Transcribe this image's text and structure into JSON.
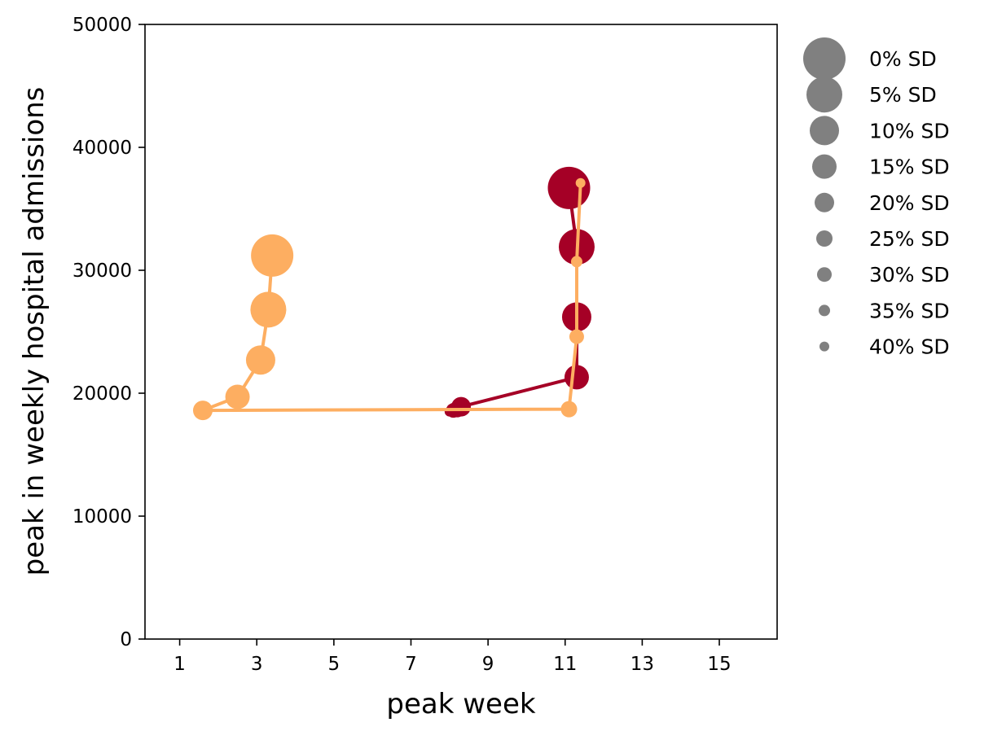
{
  "chart_data": {
    "type": "scatter",
    "title": "",
    "xlabel": "peak week",
    "ylabel": "peak in weekly hospital admissions",
    "xlim": [
      0.1,
      16.5
    ],
    "ylim": [
      0,
      50000
    ],
    "x_ticks": [
      1,
      3,
      5,
      7,
      9,
      11,
      13,
      15
    ],
    "y_ticks": [
      0,
      10000,
      20000,
      30000,
      40000,
      50000
    ],
    "x_tick_labels": [
      "1",
      "3",
      "5",
      "7",
      "9",
      "11",
      "13",
      "15"
    ],
    "y_tick_labels": [
      "0",
      "10000",
      "20000",
      "30000",
      "40000",
      "50000"
    ],
    "grid": false,
    "legend_position": "outside-right",
    "marker_size_legend": {
      "color": "#808080",
      "labels": [
        "0% SD",
        "5% SD",
        "10% SD",
        "15% SD",
        "20% SD",
        "25% SD",
        "30% SD",
        "35% SD",
        "40% SD"
      ]
    },
    "series": [
      {
        "color": "#a50026",
        "points": [
          {
            "x": 11.1,
            "y": 36700,
            "sd": "0% SD"
          },
          {
            "x": 11.3,
            "y": 31900,
            "sd": "5% SD"
          },
          {
            "x": 11.3,
            "y": 26200,
            "sd": "10% SD"
          },
          {
            "x": 11.3,
            "y": 21300,
            "sd": "15% SD"
          },
          {
            "x": 8.3,
            "y": 18900,
            "sd": "20% SD"
          },
          {
            "x": 8.2,
            "y": 18700,
            "sd": "25% SD"
          },
          {
            "x": 8.1,
            "y": 18600,
            "sd": "30% SD"
          },
          {
            "x": 8.05,
            "y": 18550,
            "sd": "35% SD"
          },
          {
            "x": 8.0,
            "y": 18500,
            "sd": "40% SD"
          }
        ]
      },
      {
        "color": "#fdae61",
        "points": [
          {
            "x": 3.4,
            "y": 31200,
            "sd": "0% SD"
          },
          {
            "x": 3.3,
            "y": 26800,
            "sd": "5% SD"
          },
          {
            "x": 3.1,
            "y": 22700,
            "sd": "10% SD"
          },
          {
            "x": 2.5,
            "y": 19700,
            "sd": "15% SD"
          },
          {
            "x": 1.6,
            "y": 18600,
            "sd": "20% SD"
          },
          {
            "x": 11.1,
            "y": 18700,
            "sd": "25% SD"
          },
          {
            "x": 11.3,
            "y": 24600,
            "sd": "30% SD"
          },
          {
            "x": 11.3,
            "y": 30700,
            "sd": "35% SD"
          },
          {
            "x": 11.4,
            "y": 37100,
            "sd": "40% SD"
          }
        ]
      }
    ]
  }
}
